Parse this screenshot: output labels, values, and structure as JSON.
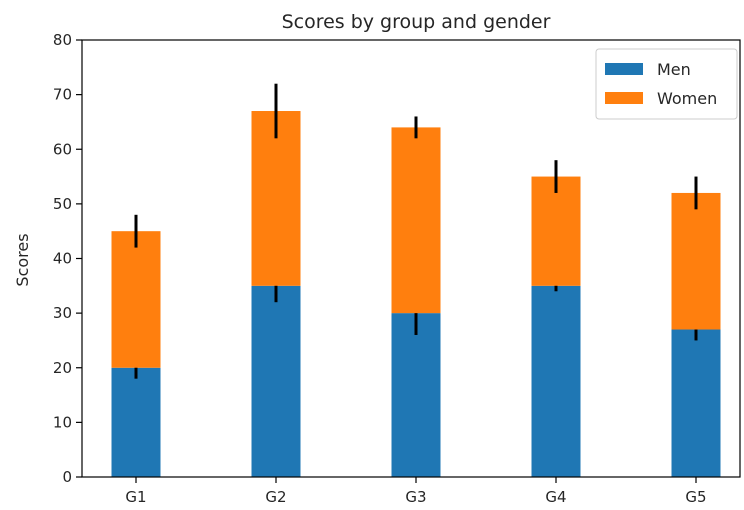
{
  "chart_data": {
    "type": "bar",
    "stacked": true,
    "title": "Scores by group and gender",
    "xlabel": "",
    "ylabel": "Scores",
    "categories": [
      "G1",
      "G2",
      "G3",
      "G4",
      "G5"
    ],
    "ylim": [
      0,
      80
    ],
    "yticks": [
      0,
      10,
      20,
      30,
      40,
      50,
      60,
      70,
      80
    ],
    "grid": false,
    "legend_position": "top-right",
    "series": [
      {
        "name": "Men",
        "color": "#1f77b4",
        "values": [
          20,
          35,
          30,
          35,
          27
        ],
        "errors": [
          2,
          3,
          4,
          1,
          2
        ]
      },
      {
        "name": "Women",
        "color": "#ff7f0e",
        "values": [
          25,
          32,
          34,
          20,
          25
        ],
        "errors": [
          3,
          5,
          2,
          3,
          3
        ]
      }
    ]
  }
}
